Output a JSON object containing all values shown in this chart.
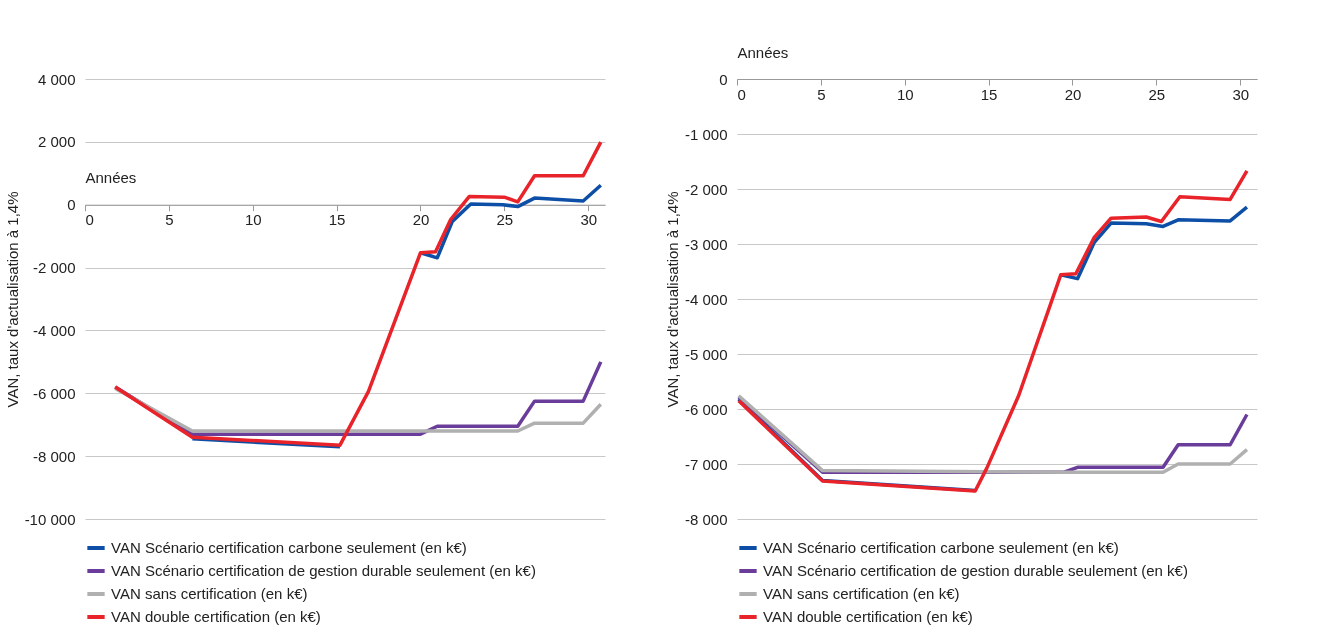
{
  "chart_data": [
    {
      "type": "line",
      "xlabel": "Années",
      "ylabel": "VAN, taux d'actualisation à 1,4%",
      "xlim": [
        0,
        31
      ],
      "xticks": [
        0,
        5,
        10,
        15,
        20,
        25,
        30
      ],
      "ylim": [
        -10000,
        4000
      ],
      "yticks": [
        {
          "value": 4000,
          "label": "4 000"
        },
        {
          "value": 2000,
          "label": "2 000"
        },
        0,
        {
          "value": -2000,
          "label": "-2 000"
        },
        {
          "value": -4000,
          "label": "-4 000"
        },
        {
          "value": -6000,
          "label": "-6 000"
        },
        {
          "value": -8000,
          "label": "-8 000"
        },
        {
          "value": -10000,
          "label": "-10 000"
        }
      ],
      "grid": "y",
      "legend": "bottom",
      "line_style": "solid",
      "marker": "none",
      "series": [
        {
          "name": "VAN Scénario certification carbone seulement (en k€)",
          "color": "#0d4ea6",
          "x": [
            6.4,
            15.2,
            16.9,
            20.0,
            21.0,
            21.9,
            23.0,
            24.9,
            25.8,
            26.8,
            29.7,
            30.75
          ],
          "values": [
            -7450,
            -7700,
            null,
            -1530,
            -1690,
            -530,
            20,
            0,
            -60,
            210,
            120,
            620
          ]
        },
        {
          "name": "VAN Scénario certification de gestion durable seulement (en k€)",
          "color": "#6a3d9a",
          "x": [
            1.8,
            6.4,
            20.0,
            21.0,
            25.8,
            26.8,
            29.7,
            30.75
          ],
          "values": [
            -5800,
            -7300,
            -7300,
            -7050,
            -7050,
            -6250,
            -6250,
            -5000
          ]
        },
        {
          "name": "VAN sans certification (en k€)",
          "color": "#b0b0b0",
          "x": [
            1.8,
            6.4,
            20.0,
            25.8,
            26.8,
            29.7,
            30.75
          ],
          "values": [
            -5850,
            -7200,
            -7200,
            -7200,
            -6950,
            -6950,
            -6350
          ]
        },
        {
          "name": "VAN double certification (en k€)",
          "color": "#e8232a",
          "x": [
            1.8,
            6.4,
            15.2,
            16.9,
            20.0,
            20.9,
            21.8,
            22.9,
            25.0,
            25.8,
            26.8,
            29.7,
            30.75
          ],
          "values": [
            -5800,
            -7400,
            -7650,
            -5940,
            -1530,
            -1500,
            -470,
            260,
            240,
            90,
            920,
            920,
            1990
          ]
        }
      ]
    },
    {
      "type": "line",
      "xlabel": "Années",
      "ylabel": "VAN, taux d'actualisation à 1,4%",
      "xlim": [
        0,
        31
      ],
      "xticks": [
        0,
        5,
        10,
        15,
        20,
        25,
        30
      ],
      "ylim": [
        -8000,
        0
      ],
      "yticks": [
        0,
        {
          "value": -1000,
          "label": "-1 000"
        },
        {
          "value": -2000,
          "label": "-2 000"
        },
        {
          "value": -3000,
          "label": "-3 000"
        },
        {
          "value": -4000,
          "label": "-4 000"
        },
        {
          "value": -5000,
          "label": "-5 000"
        },
        {
          "value": -6000,
          "label": "-6 000"
        },
        {
          "value": -7000,
          "label": "-7 000"
        },
        {
          "value": -8000,
          "label": "-8 000"
        }
      ],
      "grid": "y",
      "legend": "bottom",
      "line_style": "solid",
      "marker": "none",
      "series": [
        {
          "name": "VAN Scénario certification carbone seulement (en k€)",
          "color": "#0d4ea6",
          "x": [
            0.1,
            5.1,
            14.2,
            14.9,
            16.8,
            19.3,
            20.3,
            21.3,
            22.3,
            24.4,
            25.4,
            26.3,
            29.4,
            30.4
          ],
          "values": [
            -5820,
            -7300,
            -7480,
            null,
            null,
            -3560,
            -3630,
            -2970,
            -2620,
            -2630,
            -2680,
            -2560,
            -2580,
            -2330
          ]
        },
        {
          "name": "VAN Scénario certification de gestion durable seulement (en k€)",
          "color": "#6a3d9a",
          "x": [
            0.1,
            5.1,
            19.5,
            20.3,
            25.4,
            26.3,
            29.4,
            30.4
          ],
          "values": [
            -5780,
            -7150,
            -7150,
            -7060,
            -7060,
            -6650,
            -6650,
            -6100
          ]
        },
        {
          "name": "VAN sans certification (en k€)",
          "color": "#b0b0b0",
          "x": [
            0.1,
            5.1,
            19.5,
            25.4,
            26.3,
            29.4,
            30.4
          ],
          "values": [
            -5760,
            -7120,
            -7150,
            -7150,
            -7000,
            -7000,
            -6740
          ]
        },
        {
          "name": "VAN double certification (en k€)",
          "color": "#e8232a",
          "x": [
            0.1,
            5.1,
            14.2,
            14.9,
            16.8,
            19.3,
            20.2,
            21.3,
            22.3,
            24.4,
            25.3,
            26.4,
            29.4,
            30.4
          ],
          "values": [
            -5850,
            -7310,
            -7490,
            -7070,
            -5750,
            -3560,
            -3540,
            -2880,
            -2530,
            -2510,
            -2590,
            -2140,
            -2190,
            -1670
          ]
        }
      ]
    }
  ]
}
